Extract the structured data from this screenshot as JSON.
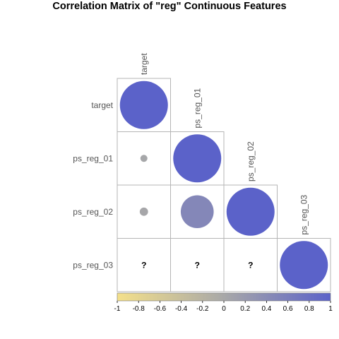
{
  "chart_data": {
    "type": "heatmap",
    "title": "Correlation Matrix of \"reg\" Continuous Features",
    "variables": [
      "target",
      "ps_reg_01",
      "ps_reg_02",
      "ps_reg_03"
    ],
    "matrix": [
      [
        1.0,
        null,
        null,
        null
      ],
      [
        0.02,
        1.0,
        null,
        null
      ],
      [
        0.03,
        0.47,
        1.0,
        null
      ],
      [
        null,
        null,
        null,
        1.0
      ]
    ],
    "missing_symbol": "?",
    "colorbar": {
      "range": [
        -1,
        1
      ],
      "ticks": [
        "-1",
        "-0.8",
        "-0.6",
        "-0.4",
        "-0.2",
        "0",
        "0.2",
        "0.4",
        "0.6",
        "0.8",
        "1"
      ],
      "colors": {
        "low": "#f4e08a",
        "mid": "#a8a8a8",
        "high": "#5b62c9"
      }
    },
    "grid": true
  }
}
